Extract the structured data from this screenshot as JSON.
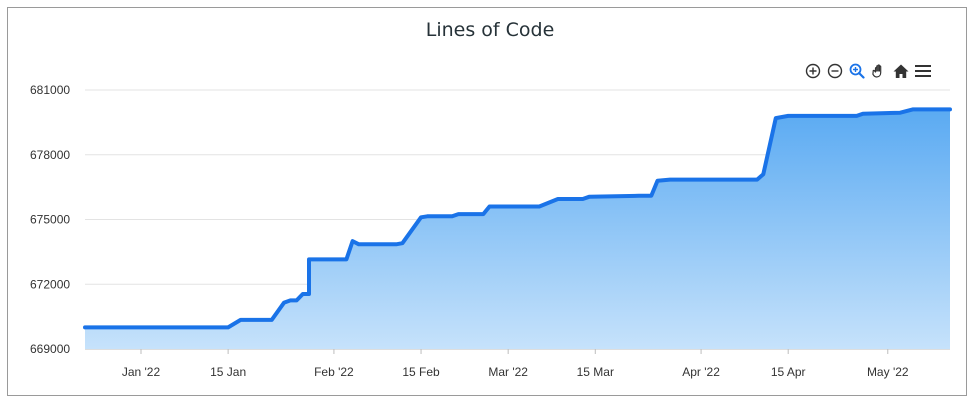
{
  "chart_data": {
    "type": "area",
    "title": "Lines of Code",
    "xlabel": "",
    "ylabel": "",
    "ylim": [
      669000,
      681000
    ],
    "grid": true,
    "x_range": [
      "2021-12-23",
      "2022-05-11"
    ],
    "y_ticks": [
      "681000",
      "678000",
      "675000",
      "672000",
      "669000"
    ],
    "x_ticks": [
      {
        "date": "2022-01-01",
        "label": "Jan '22"
      },
      {
        "date": "2022-01-15",
        "label": "15 Jan"
      },
      {
        "date": "2022-02-01",
        "label": "Feb '22"
      },
      {
        "date": "2022-02-15",
        "label": "15 Feb"
      },
      {
        "date": "2022-03-01",
        "label": "Mar '22"
      },
      {
        "date": "2022-03-15",
        "label": "15 Mar"
      },
      {
        "date": "2022-04-01",
        "label": "Apr '22"
      },
      {
        "date": "2022-04-15",
        "label": "15 Apr"
      },
      {
        "date": "2022-05-01",
        "label": "May '22"
      }
    ],
    "series": [
      {
        "color": "#1a73e8",
        "points": [
          [
            "2021-12-23",
            670000
          ],
          [
            "2022-01-15",
            670000
          ],
          [
            "2022-01-17",
            670350
          ],
          [
            "2022-01-22",
            670350
          ],
          [
            "2022-01-24",
            671150
          ],
          [
            "2022-01-25",
            671250
          ],
          [
            "2022-01-26",
            671250
          ],
          [
            "2022-01-27",
            671550
          ],
          [
            "2022-01-28",
            671550
          ],
          [
            "2022-01-28",
            673150
          ],
          [
            "2022-02-03",
            673150
          ],
          [
            "2022-02-04",
            674000
          ],
          [
            "2022-02-05",
            673850
          ],
          [
            "2022-02-11",
            673850
          ],
          [
            "2022-02-12",
            673900
          ],
          [
            "2022-02-15",
            675100
          ],
          [
            "2022-02-16",
            675150
          ],
          [
            "2022-02-20",
            675150
          ],
          [
            "2022-02-21",
            675250
          ],
          [
            "2022-02-25",
            675250
          ],
          [
            "2022-02-26",
            675600
          ],
          [
            "2022-03-06",
            675600
          ],
          [
            "2022-03-09",
            675950
          ],
          [
            "2022-03-13",
            675950
          ],
          [
            "2022-03-14",
            676050
          ],
          [
            "2022-03-22",
            676100
          ],
          [
            "2022-03-24",
            676100
          ],
          [
            "2022-03-25",
            676800
          ],
          [
            "2022-03-27",
            676850
          ],
          [
            "2022-04-10",
            676850
          ],
          [
            "2022-04-11",
            677100
          ],
          [
            "2022-04-13",
            679700
          ],
          [
            "2022-04-15",
            679800
          ],
          [
            "2022-04-26",
            679800
          ],
          [
            "2022-04-27",
            679900
          ],
          [
            "2022-05-03",
            679950
          ],
          [
            "2022-05-05",
            680100
          ],
          [
            "2022-05-11",
            680100
          ]
        ]
      }
    ]
  },
  "toolbar": {
    "icons": [
      "zoom-in-icon",
      "zoom-out-icon",
      "selection-zoom-icon",
      "pan-hand-icon",
      "reset-home-icon",
      "menu-icon"
    ],
    "active_color": "#1a73e8",
    "idle_color": "#333333"
  }
}
